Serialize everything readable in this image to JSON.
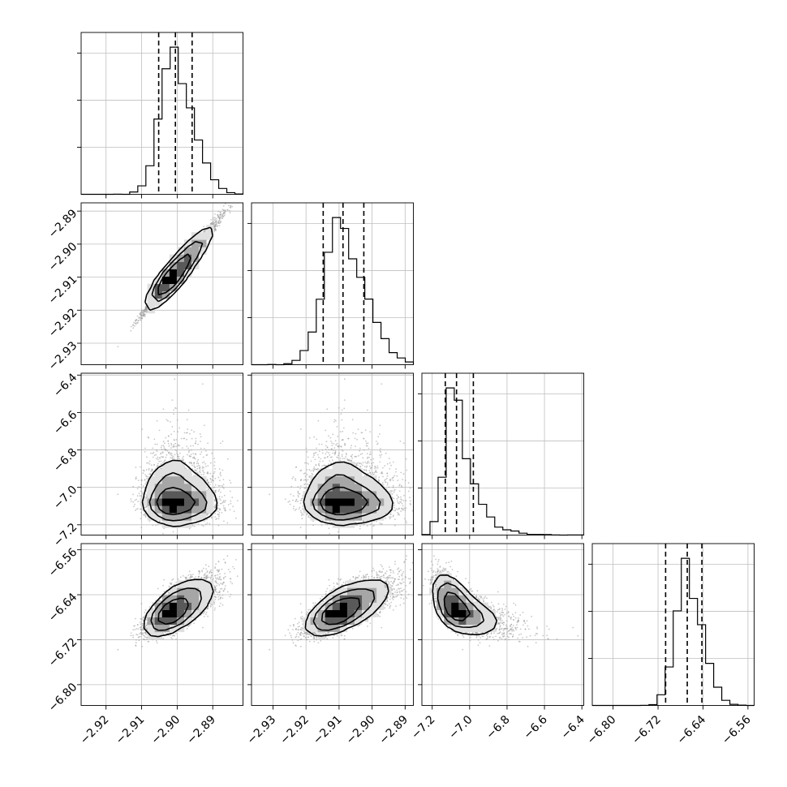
{
  "chart_data": {
    "type": "scatter",
    "kind": "corner-plot",
    "title": "",
    "params": [
      {
        "label": "",
        "center": -2.9005,
        "sigma": 0.0046,
        "range": [
          -2.927,
          -2.8815
        ],
        "ticks": [
          -2.92,
          -2.91,
          -2.9,
          -2.89
        ],
        "tick_labels": [
          "−2.92",
          "−2.91",
          "−2.90",
          "−2.89"
        ],
        "quantiles": [
          -2.9052,
          -2.9005,
          -2.8958
        ]
      },
      {
        "label": "",
        "center": -2.9088,
        "sigma": 0.0062,
        "range": [
          -2.9365,
          -2.8875
        ],
        "ticks": [
          -2.93,
          -2.92,
          -2.91,
          -2.9,
          -2.89
        ],
        "tick_labels": [
          "−2.93",
          "−2.92",
          "−2.91",
          "−2.90",
          "−2.89"
        ],
        "quantiles": [
          -2.9148,
          -2.9088,
          -2.9025
        ]
      },
      {
        "label": "",
        "center": -7.07,
        "sigma": 0.06,
        "range": [
          -7.255,
          -6.39
        ],
        "ticks": [
          -7.2,
          -7.0,
          -6.8,
          -6.6,
          -6.4
        ],
        "tick_labels": [
          "−7.2",
          "−7.0",
          "−6.8",
          "−6.6",
          "−6.4"
        ],
        "quantiles": [
          -7.13,
          -7.07,
          -6.98
        ]
      },
      {
        "label": "",
        "center": -6.666,
        "sigma": 0.0235,
        "range": [
          -6.837,
          -6.549
        ],
        "ticks": [
          -6.8,
          -6.72,
          -6.64,
          -6.56
        ],
        "tick_labels": [
          "−6.80",
          "−6.72",
          "−6.64",
          "−6.56"
        ],
        "quantiles": [
          -6.7065,
          -6.668,
          -6.642
        ]
      }
    ],
    "correlations": [
      [
        1,
        0.99,
        -0.05,
        0.72
      ],
      [
        0.99,
        1,
        -0.05,
        0.72
      ],
      [
        -0.05,
        -0.05,
        1,
        -0.68
      ],
      [
        0.72,
        0.72,
        -0.68,
        1
      ]
    ],
    "bins": 20,
    "grid": true,
    "legend": "none",
    "colors": {
      "ink": "#000000",
      "points": "#9a9a9a",
      "grid": "#bfbfbf"
    }
  }
}
